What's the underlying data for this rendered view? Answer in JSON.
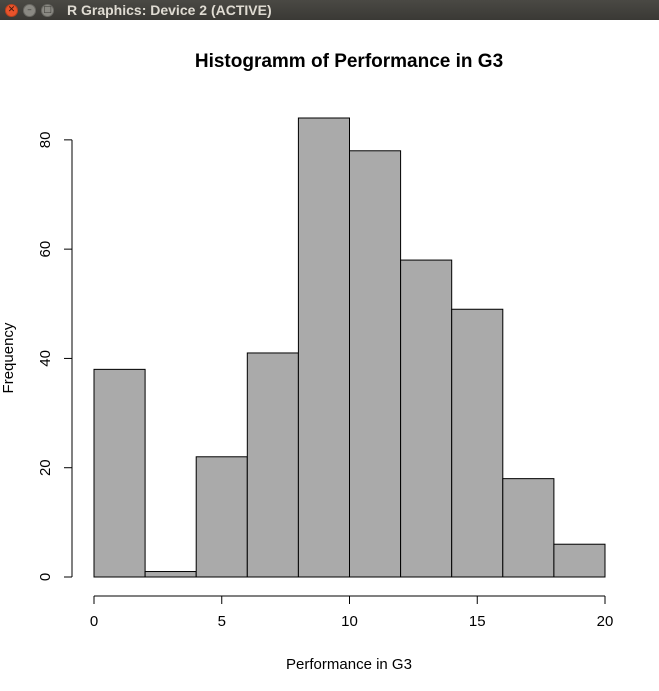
{
  "window": {
    "title": "R Graphics: Device 2 (ACTIVE)",
    "close_glyph": "✕",
    "min_glyph": "–",
    "max_glyph": "□"
  },
  "chart_data": {
    "type": "bar",
    "title": "Histogramm of Performance in G3",
    "xlabel": "Performance in G3",
    "ylabel": "Frequency",
    "bins": [
      [
        0,
        2
      ],
      [
        2,
        4
      ],
      [
        4,
        6
      ],
      [
        6,
        8
      ],
      [
        8,
        10
      ],
      [
        10,
        12
      ],
      [
        12,
        14
      ],
      [
        14,
        16
      ],
      [
        16,
        18
      ],
      [
        18,
        20
      ]
    ],
    "values": [
      38,
      1,
      22,
      41,
      84,
      78,
      58,
      49,
      18,
      6
    ],
    "xlim": [
      0,
      20
    ],
    "ylim": [
      0,
      84
    ],
    "xticks": [
      0,
      5,
      10,
      15,
      20
    ],
    "yticks": [
      0,
      20,
      40,
      60,
      80
    ],
    "bar_color": "#aaaaaa",
    "grid": false
  }
}
